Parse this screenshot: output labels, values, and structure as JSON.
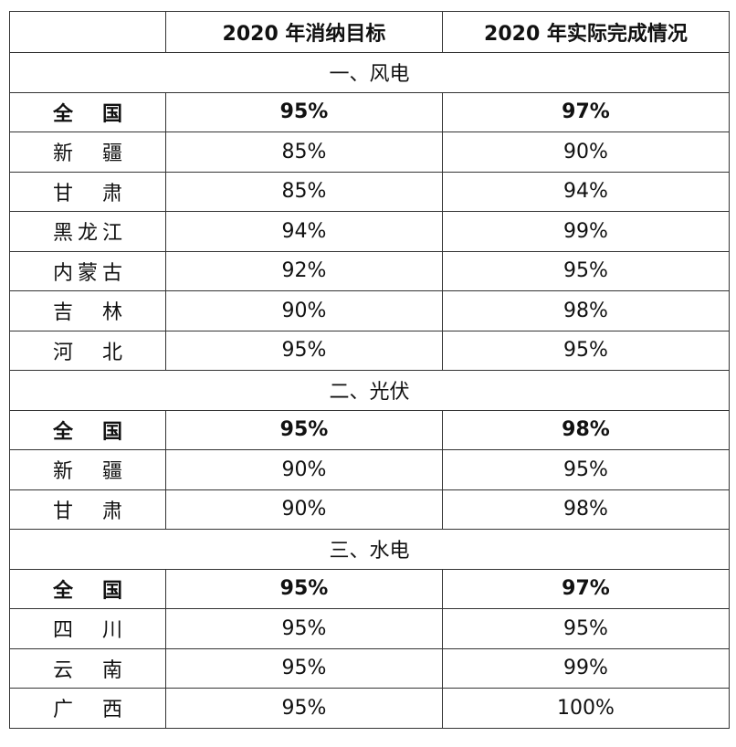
{
  "header": {
    "col1": "",
    "col2": "2020 年消纳目标",
    "col3": "2020 年实际完成情况"
  },
  "sections": [
    {
      "title": "一、风电",
      "rows": [
        {
          "region": "全国",
          "target": "95%",
          "actual": "97%",
          "bold": true
        },
        {
          "region": "新疆",
          "target": "85%",
          "actual": "90%"
        },
        {
          "region": "甘肃",
          "target": "85%",
          "actual": "94%"
        },
        {
          "region": "黑龙江",
          "target": "94%",
          "actual": "99%"
        },
        {
          "region": "内蒙古",
          "target": "92%",
          "actual": "95%"
        },
        {
          "region": "吉林",
          "target": "90%",
          "actual": "98%"
        },
        {
          "region": "河北",
          "target": "95%",
          "actual": "95%"
        }
      ]
    },
    {
      "title": "二、光伏",
      "rows": [
        {
          "region": "全国",
          "target": "95%",
          "actual": "98%",
          "bold": true
        },
        {
          "region": "新疆",
          "target": "90%",
          "actual": "95%"
        },
        {
          "region": "甘肃",
          "target": "90%",
          "actual": "98%"
        }
      ]
    },
    {
      "title": "三、水电",
      "rows": [
        {
          "region": "全国",
          "target": "95%",
          "actual": "97%",
          "bold": true
        },
        {
          "region": "四川",
          "target": "95%",
          "actual": "95%"
        },
        {
          "region": "云南",
          "target": "95%",
          "actual": "99%"
        },
        {
          "region": "广西",
          "target": "95%",
          "actual": "100%"
        }
      ]
    }
  ]
}
